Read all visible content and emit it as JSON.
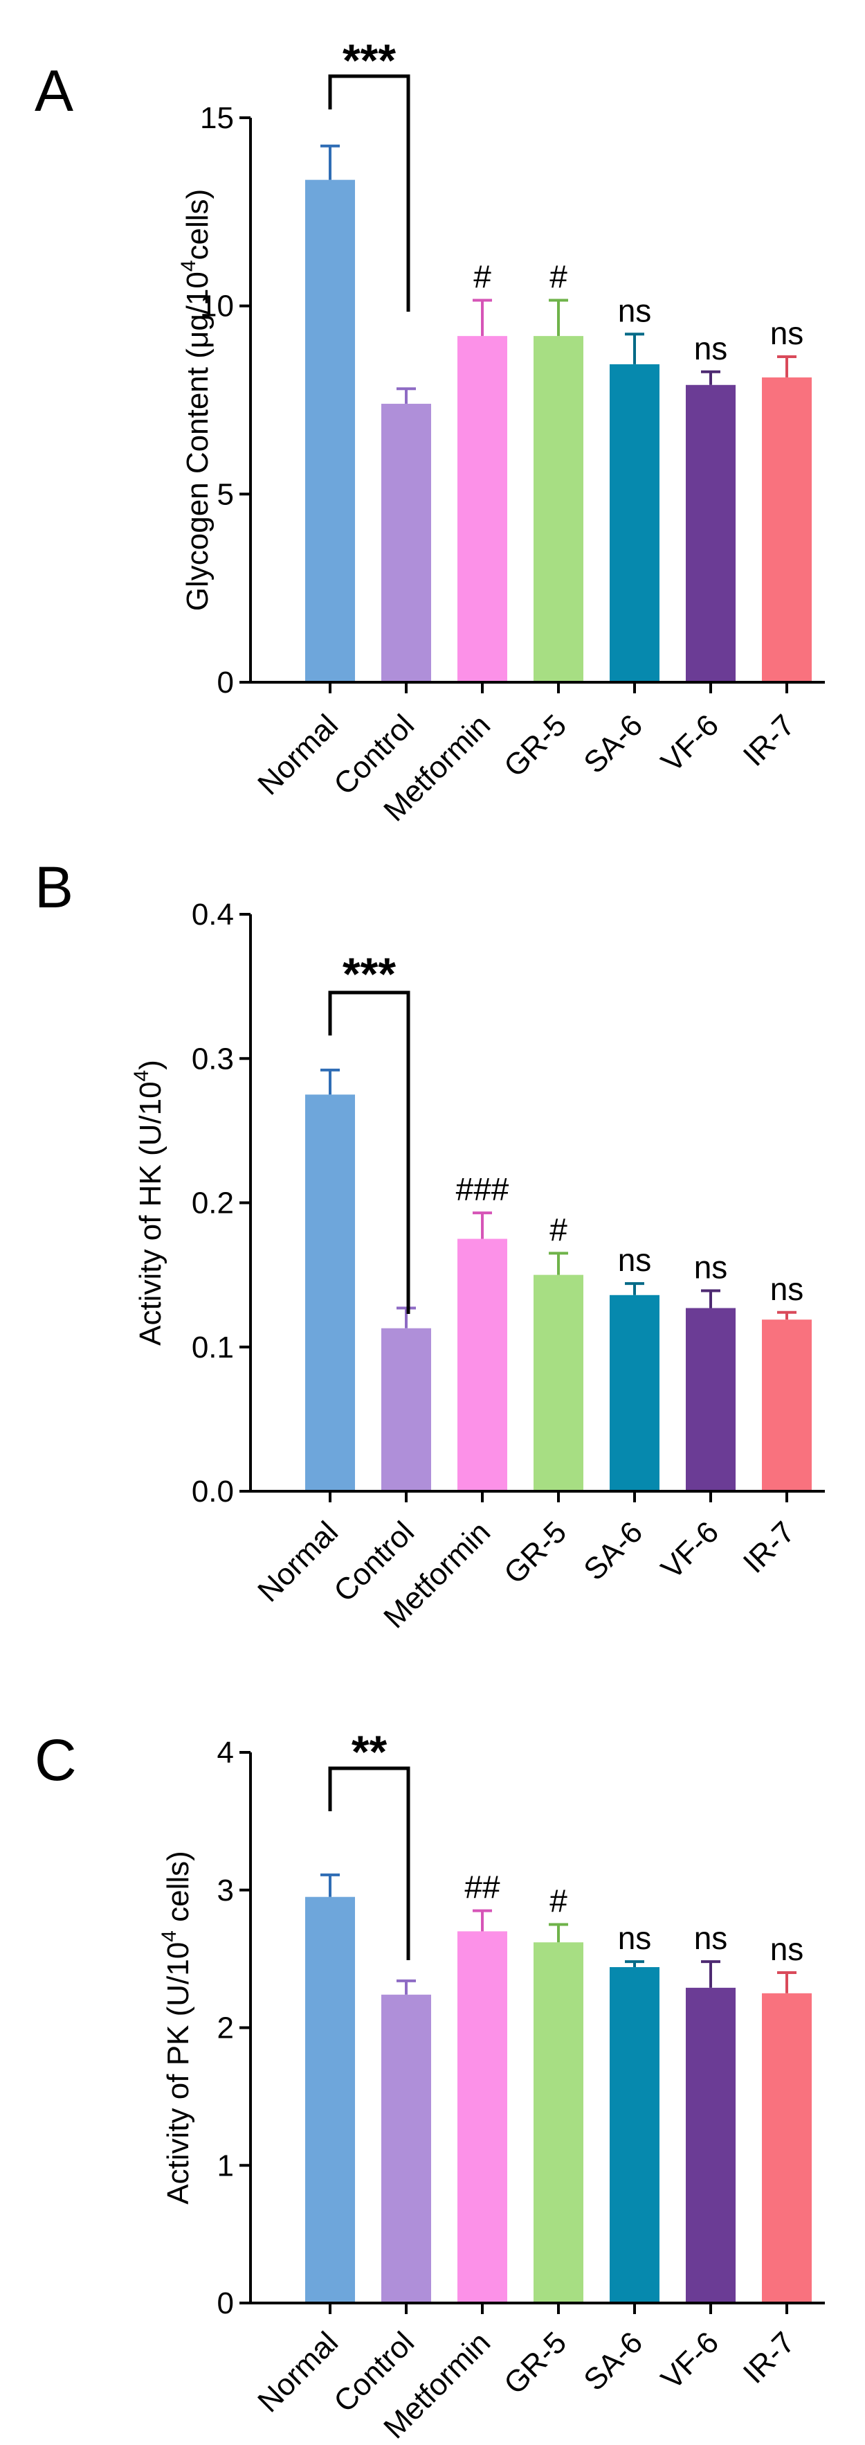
{
  "chart_data": [
    {
      "type": "bar",
      "panel_label": "A",
      "ylabel_main": "Glycogen Content (μg/10",
      "ylabel_sup": "4",
      "ylabel_tail": "cells)",
      "ylim": [
        0,
        15
      ],
      "yticks": [
        0,
        5,
        10,
        15
      ],
      "ytick_labels": [
        "0",
        "5",
        "10",
        "15"
      ],
      "categories": [
        "Normal",
        "Control",
        "Metformin",
        "GR-5",
        "SA-6",
        "VF-6",
        "IR-7"
      ],
      "values": [
        13.35,
        7.4,
        9.2,
        9.2,
        8.45,
        7.9,
        8.1
      ],
      "errors": [
        0.9,
        0.4,
        0.95,
        0.95,
        0.8,
        0.35,
        0.55
      ],
      "annotations": [
        "",
        "",
        "#",
        "#",
        "ns",
        "ns",
        "ns"
      ],
      "bracket_label": "***"
    },
    {
      "type": "bar",
      "panel_label": "B",
      "ylabel_main": "Activity of HK (U/10",
      "ylabel_sup": "4",
      "ylabel_tail": ")",
      "ylim": [
        0,
        0.4
      ],
      "yticks": [
        0,
        0.1,
        0.2,
        0.3,
        0.4
      ],
      "ytick_labels": [
        "0.0",
        "0.1",
        "0.2",
        "0.3",
        "0.4"
      ],
      "categories": [
        "Normal",
        "Control",
        "Metformin",
        "GR-5",
        "SA-6",
        "VF-6",
        "IR-7"
      ],
      "values": [
        0.275,
        0.113,
        0.175,
        0.15,
        0.136,
        0.127,
        0.119
      ],
      "errors": [
        0.017,
        0.014,
        0.018,
        0.015,
        0.008,
        0.012,
        0.005
      ],
      "annotations": [
        "",
        "",
        "###",
        "#",
        "ns",
        "ns",
        "ns"
      ],
      "bracket_label": "***"
    },
    {
      "type": "bar",
      "panel_label": "C",
      "ylabel_main": "Activity of PK (U/10",
      "ylabel_sup": "4",
      "ylabel_tail": " cells)",
      "ylim": [
        0,
        4
      ],
      "yticks": [
        0,
        1,
        2,
        3,
        4
      ],
      "ytick_labels": [
        "0",
        "1",
        "2",
        "3",
        "4"
      ],
      "categories": [
        "Normal",
        "Control",
        "Metformin",
        "GR-5",
        "SA-6",
        "VF-6",
        "IR-7"
      ],
      "values": [
        2.95,
        2.24,
        2.7,
        2.62,
        2.44,
        2.29,
        2.25
      ],
      "errors": [
        0.16,
        0.1,
        0.15,
        0.13,
        0.04,
        0.19,
        0.15
      ],
      "annotations": [
        "",
        "",
        "##",
        "#",
        "ns",
        "ns",
        "ns"
      ],
      "bracket_label": "**"
    }
  ],
  "colors": {
    "bar_fills": [
      "#6EA6DB",
      "#AF8FD9",
      "#FC91E8",
      "#A7DE83",
      "#0689AE",
      "#6B3C95",
      "#F9727E"
    ],
    "error_colors": [
      "#2F6DB5",
      "#8E6BC4",
      "#D655B7",
      "#6FB34A",
      "#036A87",
      "#4E2A72",
      "#D94A5A"
    ],
    "axis": "#000000"
  }
}
